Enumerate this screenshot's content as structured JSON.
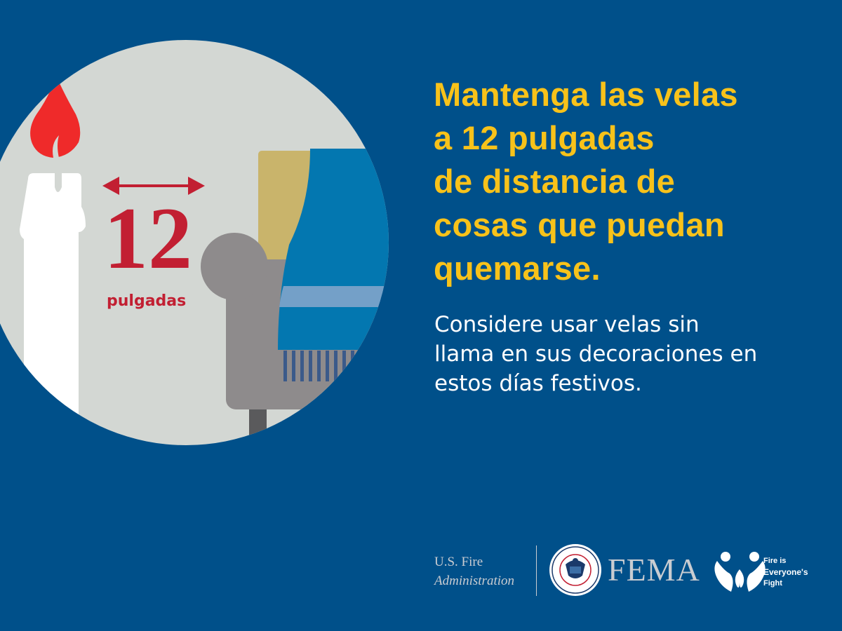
{
  "illustration": {
    "distance_number": "12",
    "distance_unit": "pulgadas",
    "colors": {
      "background": "#00508a",
      "circle": "#d3d7d3",
      "flame": "#ef2a2a",
      "measure": "#c21f32",
      "candle": "#ffffff",
      "chair": "#8e8b8c",
      "curtain": "#0377b0",
      "curtain_band": "#74a0c8",
      "tan_panel": "#c9b46b"
    }
  },
  "headline": {
    "lines": [
      "Mantenga las velas",
      "a 12 pulgadas",
      "de distancia de",
      "cosas que puedan",
      "quemarse."
    ],
    "color": "#f8c21a"
  },
  "subtext": {
    "lines": [
      "Considere usar velas sin",
      "llama en sus decoraciones en",
      "estos días festivos."
    ]
  },
  "footer": {
    "usfa_lines": [
      "U.S. Fire",
      "Administration"
    ],
    "seal_text": "U.S. DEPARTMENT OF HOMELAND SECURITY",
    "fema": "FEMA",
    "campaign_lines": [
      "Fire is",
      "Everyone's",
      "Fight"
    ]
  }
}
